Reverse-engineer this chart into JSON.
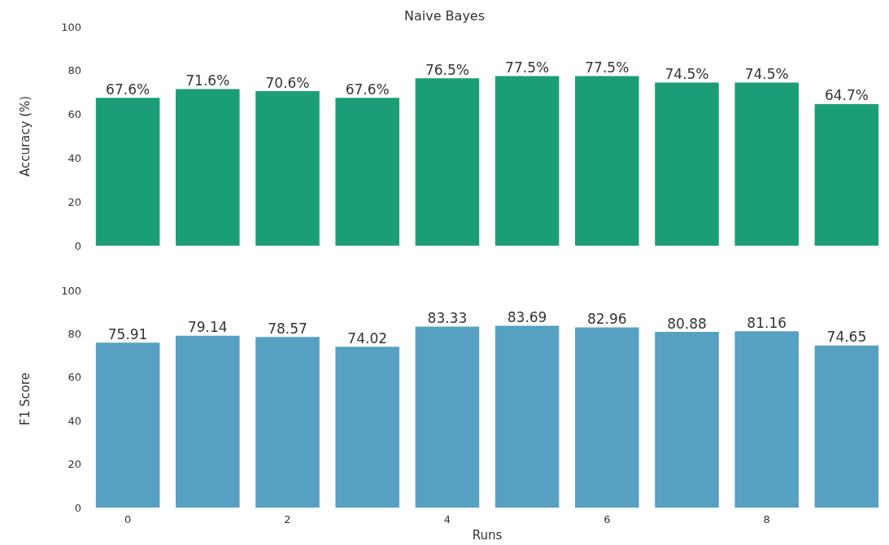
{
  "chart_data": [
    {
      "type": "bar",
      "title": "Naive Bayes",
      "ylabel": "Accuracy (%)",
      "categories": [
        "0",
        null,
        "2",
        null,
        "4",
        null,
        "6",
        null,
        "8",
        null
      ],
      "values": [
        67.6,
        71.6,
        70.6,
        67.6,
        76.5,
        77.5,
        77.5,
        74.5,
        74.5,
        64.7
      ],
      "value_labels": [
        "67.6%",
        "71.6%",
        "70.6%",
        "67.6%",
        "76.5%",
        "77.5%",
        "77.5%",
        "74.5%",
        "74.5%",
        "64.7%"
      ],
      "color": "#1b9e77",
      "ylim": [
        0,
        100
      ],
      "yticks": [
        0,
        20,
        40,
        60,
        80,
        100
      ],
      "tick_labels": "y"
    },
    {
      "type": "bar",
      "xlabel": "Runs",
      "ylabel": "F1 Score",
      "categories": [
        "0",
        null,
        "2",
        null,
        "4",
        null,
        "6",
        null,
        "8",
        null
      ],
      "values": [
        75.91,
        79.14,
        78.57,
        74.02,
        83.33,
        83.69,
        82.96,
        80.88,
        81.16,
        74.65
      ],
      "data_labels": true,
      "color": "#56a0c2",
      "ylim": [
        0,
        100
      ],
      "yticks": [
        0,
        20,
        40,
        60,
        80,
        100
      ]
    }
  ]
}
